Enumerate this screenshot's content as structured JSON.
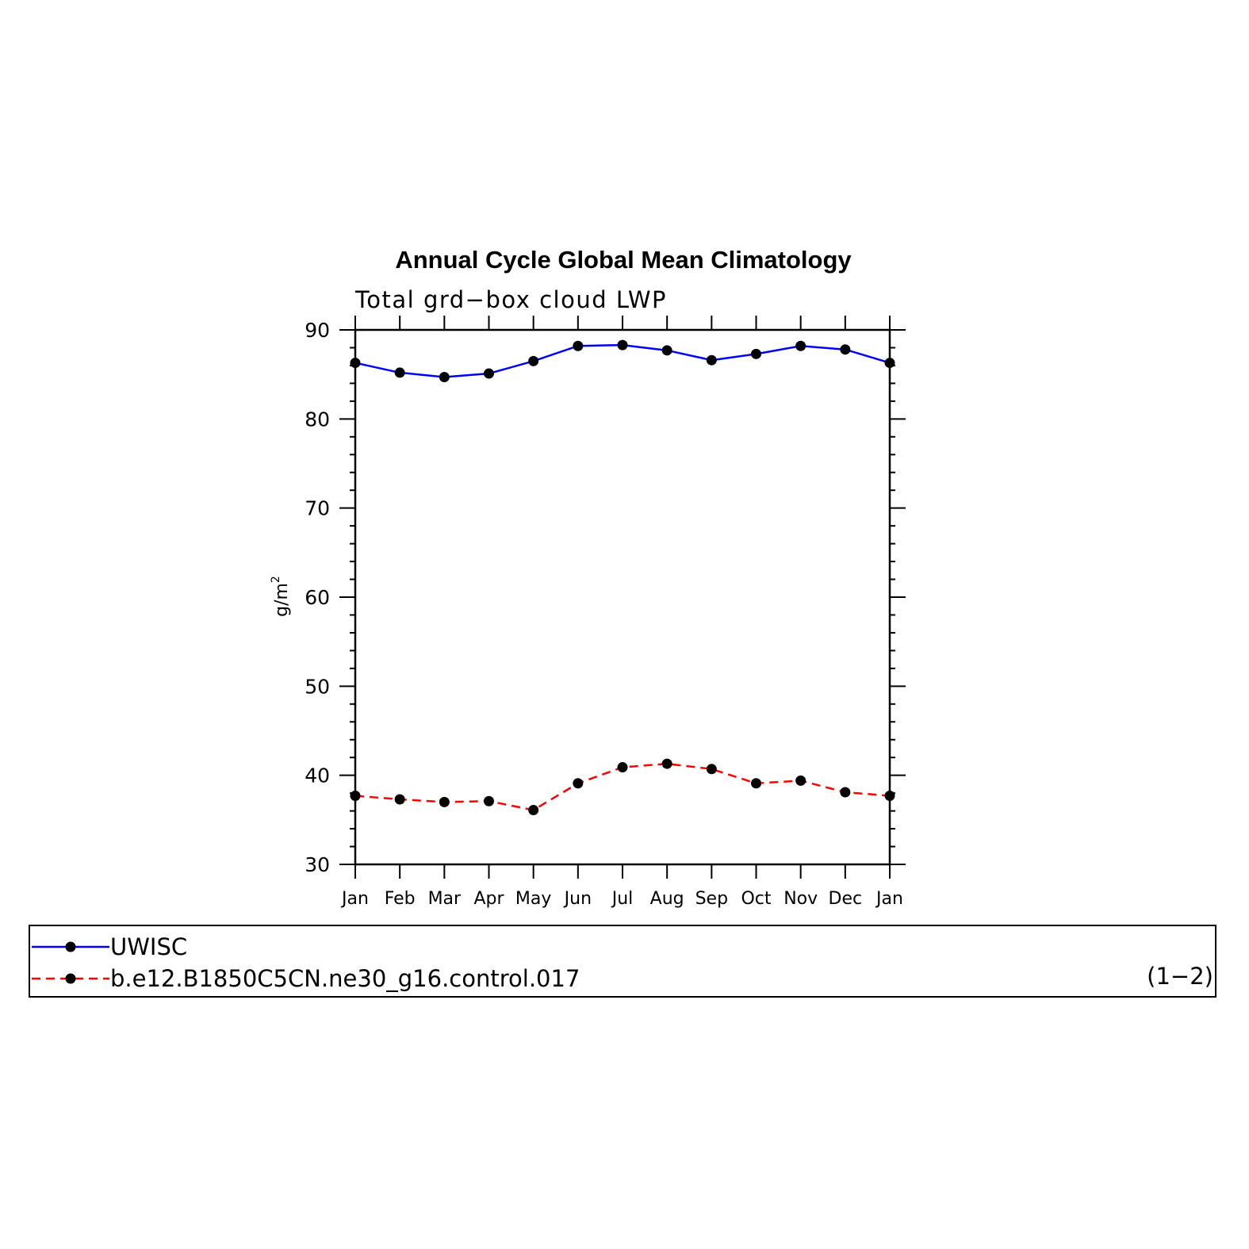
{
  "chart_data": {
    "type": "line",
    "title": "Annual Cycle Global Mean Climatology",
    "subtitle": "Total grd−box cloud LWP",
    "ylabel_base": "g/m",
    "ylabel_sup": "2",
    "ylim": [
      30,
      90
    ],
    "yticks": [
      30,
      40,
      50,
      60,
      70,
      80,
      90
    ],
    "categories": [
      "Jan",
      "Feb",
      "Mar",
      "Apr",
      "May",
      "Jun",
      "Jul",
      "Aug",
      "Sep",
      "Oct",
      "Nov",
      "Dec",
      "Jan"
    ],
    "series": [
      {
        "name": "UWISC",
        "color": "#0000ff",
        "dashed": false,
        "values": [
          86.3,
          85.2,
          84.7,
          85.1,
          86.5,
          88.2,
          88.3,
          87.7,
          86.6,
          87.3,
          88.2,
          87.8,
          86.3
        ]
      },
      {
        "name": "b.e12.B1850C5CN.ne30_g16.control.017",
        "color": "#ff0000",
        "dashed": true,
        "values": [
          37.7,
          37.3,
          37.0,
          37.1,
          36.1,
          39.1,
          40.9,
          41.3,
          40.7,
          39.1,
          39.4,
          38.1,
          37.7
        ]
      }
    ],
    "grid": false,
    "legend_position": "bottom",
    "legend_note": "(1−2)"
  }
}
